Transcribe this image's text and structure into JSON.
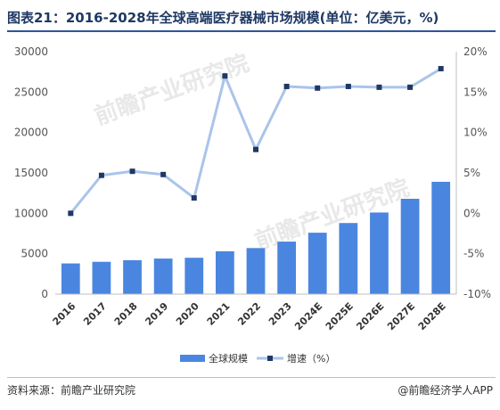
{
  "header": {
    "title": "图表21：2016-2028年全球高端医疗器械市场规模(单位：亿美元，%)"
  },
  "footer": {
    "source": "资料来源：前瞻产业研究院",
    "brand": "@前瞻经济学人APP"
  },
  "watermark": {
    "text": "前瞻产业研究院"
  },
  "colors": {
    "bar": "#4a86e0",
    "line": "#aac4ea",
    "marker": "#1f3864"
  },
  "chart_data": {
    "type": "bar",
    "categories": [
      "2016",
      "2017",
      "2018",
      "2019",
      "2020",
      "2021",
      "2022",
      "2023",
      "2024E",
      "2025E",
      "2026E",
      "2027E",
      "2028E"
    ],
    "series": [
      {
        "name": "全球规模",
        "type": "bar",
        "axis": "left",
        "values": [
          3800,
          4000,
          4200,
          4400,
          4500,
          5300,
          5700,
          6500,
          7600,
          8800,
          10100,
          11800,
          13900
        ]
      },
      {
        "name": "增速（%）",
        "type": "line",
        "axis": "right",
        "values": [
          0,
          4.7,
          5.2,
          4.8,
          1.9,
          17.0,
          7.9,
          15.7,
          15.5,
          15.7,
          15.6,
          15.6,
          17.9
        ]
      }
    ],
    "ylim": [
      0,
      30000
    ],
    "yticks": [
      "0",
      "5000",
      "10000",
      "15000",
      "20000",
      "25000",
      "30000"
    ],
    "y2lim": [
      -10,
      20
    ],
    "y2ticks": [
      "-10%",
      "-5%",
      "0%",
      "5%",
      "10%",
      "15%",
      "20%"
    ],
    "grid": false,
    "legend": "bottom"
  }
}
